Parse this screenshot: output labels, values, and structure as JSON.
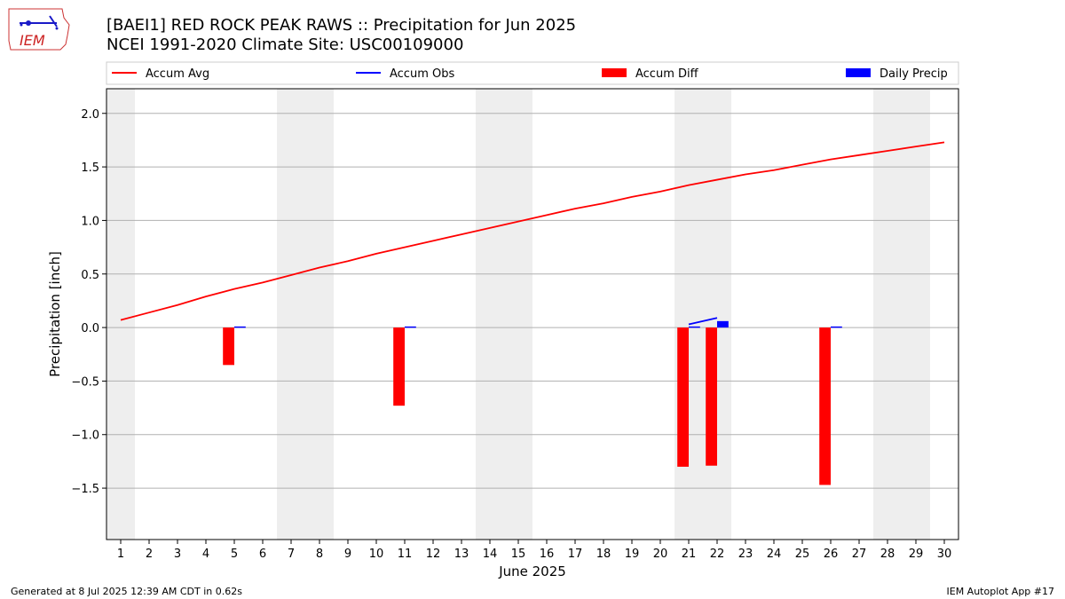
{
  "header": {
    "title": "[BAEI1] RED ROCK PEAK RAWS :: Precipitation for Jun 2025",
    "subtitle": "NCEI 1991-2020 Climate Site: USC00109000"
  },
  "logo": {
    "text": "IEM",
    "icon": "iem-iowa-logo-icon"
  },
  "footer": {
    "left": "Generated at 8 Jul 2025 12:39 AM CDT in 0.62s",
    "right": "IEM Autoplot App #17"
  },
  "colors": {
    "accum_avg": "#ff0000",
    "accum_obs": "#0000ff",
    "accum_diff": "#ff0000",
    "daily_precip": "#0000ff",
    "weekend_shade": "#eeeeee",
    "grid": "#b0b0b0"
  },
  "chart_data": {
    "type": "bar",
    "xlabel": "June 2025",
    "ylabel": "Precipitation [inch]",
    "ylim": [
      -1.98,
      2.23
    ],
    "xlim": [
      0.5,
      30.5
    ],
    "yticks": [
      -1.5,
      -1.0,
      -0.5,
      0.0,
      0.5,
      1.0,
      1.5,
      2.0
    ],
    "ytick_labels": [
      "−1.5",
      "−1.0",
      "−0.5",
      "0.0",
      "0.5",
      "1.0",
      "1.5",
      "2.0"
    ],
    "days": [
      1,
      2,
      3,
      4,
      5,
      6,
      7,
      8,
      9,
      10,
      11,
      12,
      13,
      14,
      15,
      16,
      17,
      18,
      19,
      20,
      21,
      22,
      23,
      24,
      25,
      26,
      27,
      28,
      29,
      30
    ],
    "weekend_ranges": [
      [
        0.5,
        1.5
      ],
      [
        6.5,
        8.5
      ],
      [
        13.5,
        15.5
      ],
      [
        20.5,
        22.5
      ],
      [
        27.5,
        29.5
      ]
    ],
    "grid": true,
    "legend_placement": "top",
    "legend": [
      "Accum Avg",
      "Accum Obs",
      "Accum Diff",
      "Daily Precip"
    ],
    "series": [
      {
        "name": "Accum Avg",
        "kind": "line",
        "x": [
          1,
          2,
          3,
          4,
          5,
          6,
          7,
          8,
          9,
          10,
          11,
          12,
          13,
          14,
          15,
          16,
          17,
          18,
          19,
          20,
          21,
          22,
          23,
          24,
          25,
          26,
          27,
          28,
          29,
          30
        ],
        "values": [
          0.07,
          0.14,
          0.21,
          0.29,
          0.36,
          0.42,
          0.49,
          0.56,
          0.62,
          0.69,
          0.75,
          0.81,
          0.87,
          0.93,
          0.99,
          1.05,
          1.11,
          1.16,
          1.22,
          1.27,
          1.33,
          1.38,
          1.43,
          1.47,
          1.52,
          1.57,
          1.61,
          1.65,
          1.69,
          1.73
        ]
      },
      {
        "name": "Accum Obs",
        "kind": "line",
        "x": [
          21,
          22
        ],
        "values": [
          0.03,
          0.09
        ]
      },
      {
        "name": "Accum Diff",
        "kind": "bar",
        "x": [
          5,
          11,
          21,
          22,
          26
        ],
        "values": [
          -0.35,
          -0.73,
          -1.3,
          -1.29,
          -1.47
        ]
      },
      {
        "name": "Daily Precip",
        "kind": "bar",
        "x": [
          5,
          11,
          21,
          22,
          26
        ],
        "values": [
          0.01,
          0.01,
          0.01,
          0.06,
          0.01
        ]
      }
    ]
  }
}
